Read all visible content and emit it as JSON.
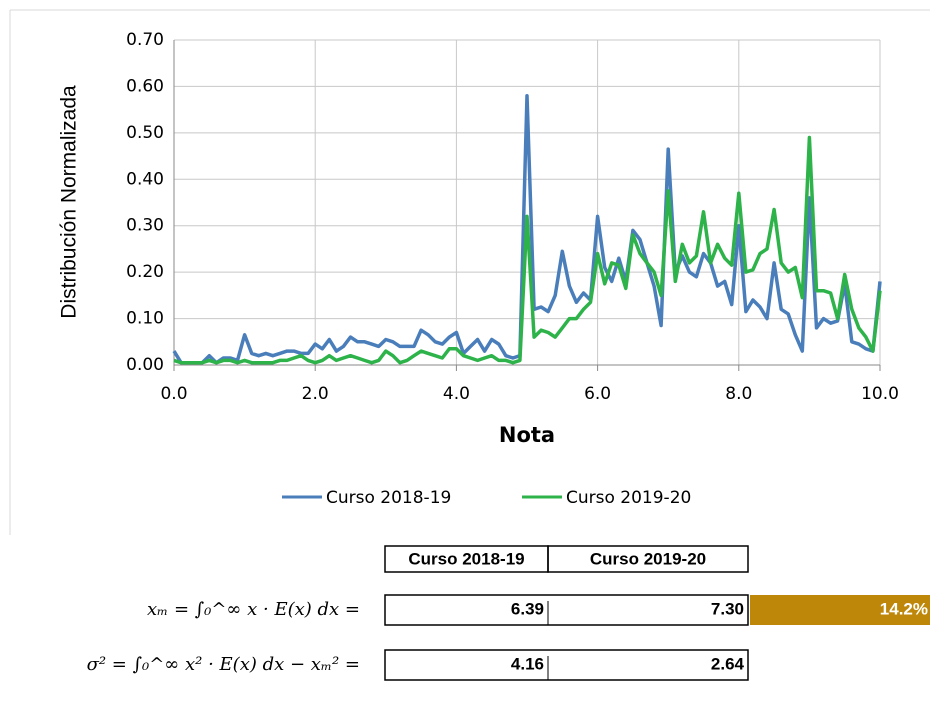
{
  "chart_data": {
    "type": "line",
    "x": [
      0,
      0.1,
      0.2,
      0.3,
      0.4,
      0.5,
      0.6,
      0.7,
      0.8,
      0.9,
      1,
      1.1,
      1.2,
      1.3,
      1.4,
      1.5,
      1.6,
      1.7,
      1.8,
      1.9,
      2,
      2.1,
      2.2,
      2.3,
      2.4,
      2.5,
      2.6,
      2.7,
      2.8,
      2.9,
      3,
      3.1,
      3.2,
      3.3,
      3.4,
      3.5,
      3.6,
      3.7,
      3.8,
      3.9,
      4,
      4.1,
      4.2,
      4.3,
      4.4,
      4.5,
      4.6,
      4.7,
      4.8,
      4.9,
      5,
      5.1,
      5.2,
      5.3,
      5.4,
      5.5,
      5.6,
      5.7,
      5.8,
      5.9,
      6,
      6.1,
      6.2,
      6.3,
      6.4,
      6.5,
      6.6,
      6.7,
      6.8,
      6.9,
      7,
      7.1,
      7.2,
      7.3,
      7.4,
      7.5,
      7.6,
      7.7,
      7.8,
      7.9,
      8,
      8.1,
      8.2,
      8.3,
      8.4,
      8.5,
      8.6,
      8.7,
      8.8,
      8.9,
      9,
      9.1,
      9.2,
      9.3,
      9.4,
      9.5,
      9.6,
      9.7,
      9.8,
      9.9,
      10
    ],
    "series": [
      {
        "name": "Curso 2018-19",
        "color": "#4a7ebb",
        "values": [
          0.03,
          0.005,
          0.005,
          0.005,
          0.005,
          0.02,
          0.005,
          0.015,
          0.015,
          0.01,
          0.065,
          0.025,
          0.02,
          0.025,
          0.02,
          0.025,
          0.03,
          0.03,
          0.025,
          0.025,
          0.045,
          0.035,
          0.055,
          0.03,
          0.04,
          0.06,
          0.05,
          0.05,
          0.045,
          0.04,
          0.055,
          0.05,
          0.04,
          0.04,
          0.04,
          0.075,
          0.065,
          0.05,
          0.045,
          0.06,
          0.07,
          0.025,
          0.04,
          0.055,
          0.03,
          0.055,
          0.045,
          0.02,
          0.015,
          0.02,
          0.58,
          0.12,
          0.125,
          0.115,
          0.15,
          0.245,
          0.17,
          0.135,
          0.155,
          0.14,
          0.32,
          0.21,
          0.18,
          0.23,
          0.18,
          0.29,
          0.27,
          0.22,
          0.17,
          0.085,
          0.465,
          0.2,
          0.235,
          0.2,
          0.19,
          0.24,
          0.22,
          0.17,
          0.18,
          0.13,
          0.3,
          0.115,
          0.14,
          0.125,
          0.1,
          0.22,
          0.12,
          0.11,
          0.065,
          0.03,
          0.36,
          0.08,
          0.1,
          0.09,
          0.095,
          0.175,
          0.05,
          0.045,
          0.035,
          0.03,
          0.18
        ]
      },
      {
        "name": "Curso 2019-20",
        "color": "#2db34a",
        "values": [
          0.01,
          0.005,
          0.005,
          0.005,
          0.005,
          0.01,
          0.005,
          0.01,
          0.01,
          0.005,
          0.01,
          0.005,
          0.005,
          0.005,
          0.005,
          0.01,
          0.01,
          0.015,
          0.02,
          0.01,
          0.005,
          0.01,
          0.02,
          0.01,
          0.015,
          0.02,
          0.015,
          0.01,
          0.005,
          0.01,
          0.03,
          0.02,
          0.005,
          0.01,
          0.02,
          0.03,
          0.025,
          0.02,
          0.015,
          0.035,
          0.035,
          0.02,
          0.015,
          0.01,
          0.015,
          0.02,
          0.01,
          0.01,
          0.005,
          0.01,
          0.32,
          0.06,
          0.075,
          0.07,
          0.06,
          0.08,
          0.1,
          0.1,
          0.12,
          0.135,
          0.24,
          0.175,
          0.22,
          0.215,
          0.165,
          0.28,
          0.24,
          0.22,
          0.2,
          0.15,
          0.375,
          0.18,
          0.26,
          0.22,
          0.235,
          0.33,
          0.22,
          0.26,
          0.23,
          0.215,
          0.37,
          0.2,
          0.205,
          0.24,
          0.25,
          0.335,
          0.22,
          0.2,
          0.21,
          0.145,
          0.49,
          0.16,
          0.16,
          0.155,
          0.1,
          0.195,
          0.12,
          0.08,
          0.06,
          0.03,
          0.16
        ]
      }
    ],
    "xlabel": "Nota",
    "ylabel": "Distribución Normalizada",
    "xlim": [
      0,
      10
    ],
    "ylim": [
      0,
      0.7
    ],
    "xticks": [
      {
        "value": 0,
        "label": "0.0"
      },
      {
        "value": 2,
        "label": "2.0"
      },
      {
        "value": 4,
        "label": "4.0"
      },
      {
        "value": 6,
        "label": "6.0"
      },
      {
        "value": 8,
        "label": "8.0"
      },
      {
        "value": 10,
        "label": "10.0"
      }
    ],
    "yticks": [
      {
        "value": 0,
        "label": "0.00"
      },
      {
        "value": 0.1,
        "label": "0.10"
      },
      {
        "value": 0.2,
        "label": "0.20"
      },
      {
        "value": 0.3,
        "label": "0.30"
      },
      {
        "value": 0.4,
        "label": "0.40"
      },
      {
        "value": 0.5,
        "label": "0.50"
      },
      {
        "value": 0.6,
        "label": "0.60"
      },
      {
        "value": 0.7,
        "label": "0.70"
      }
    ],
    "grid": true,
    "legend": "bottom"
  },
  "table": {
    "header": [
      "Curso 2018-19",
      "Curso 2019-20"
    ],
    "rows": [
      {
        "formula": "xₘ = ∫₀^∞ x · E(x) dx =",
        "values": [
          "6.39",
          "7.30"
        ],
        "change": "14.2%"
      },
      {
        "formula": "σ² = ∫₀^∞ x² · E(x) dx − xₘ² =",
        "values": [
          "4.16",
          "2.64"
        ]
      }
    ]
  }
}
